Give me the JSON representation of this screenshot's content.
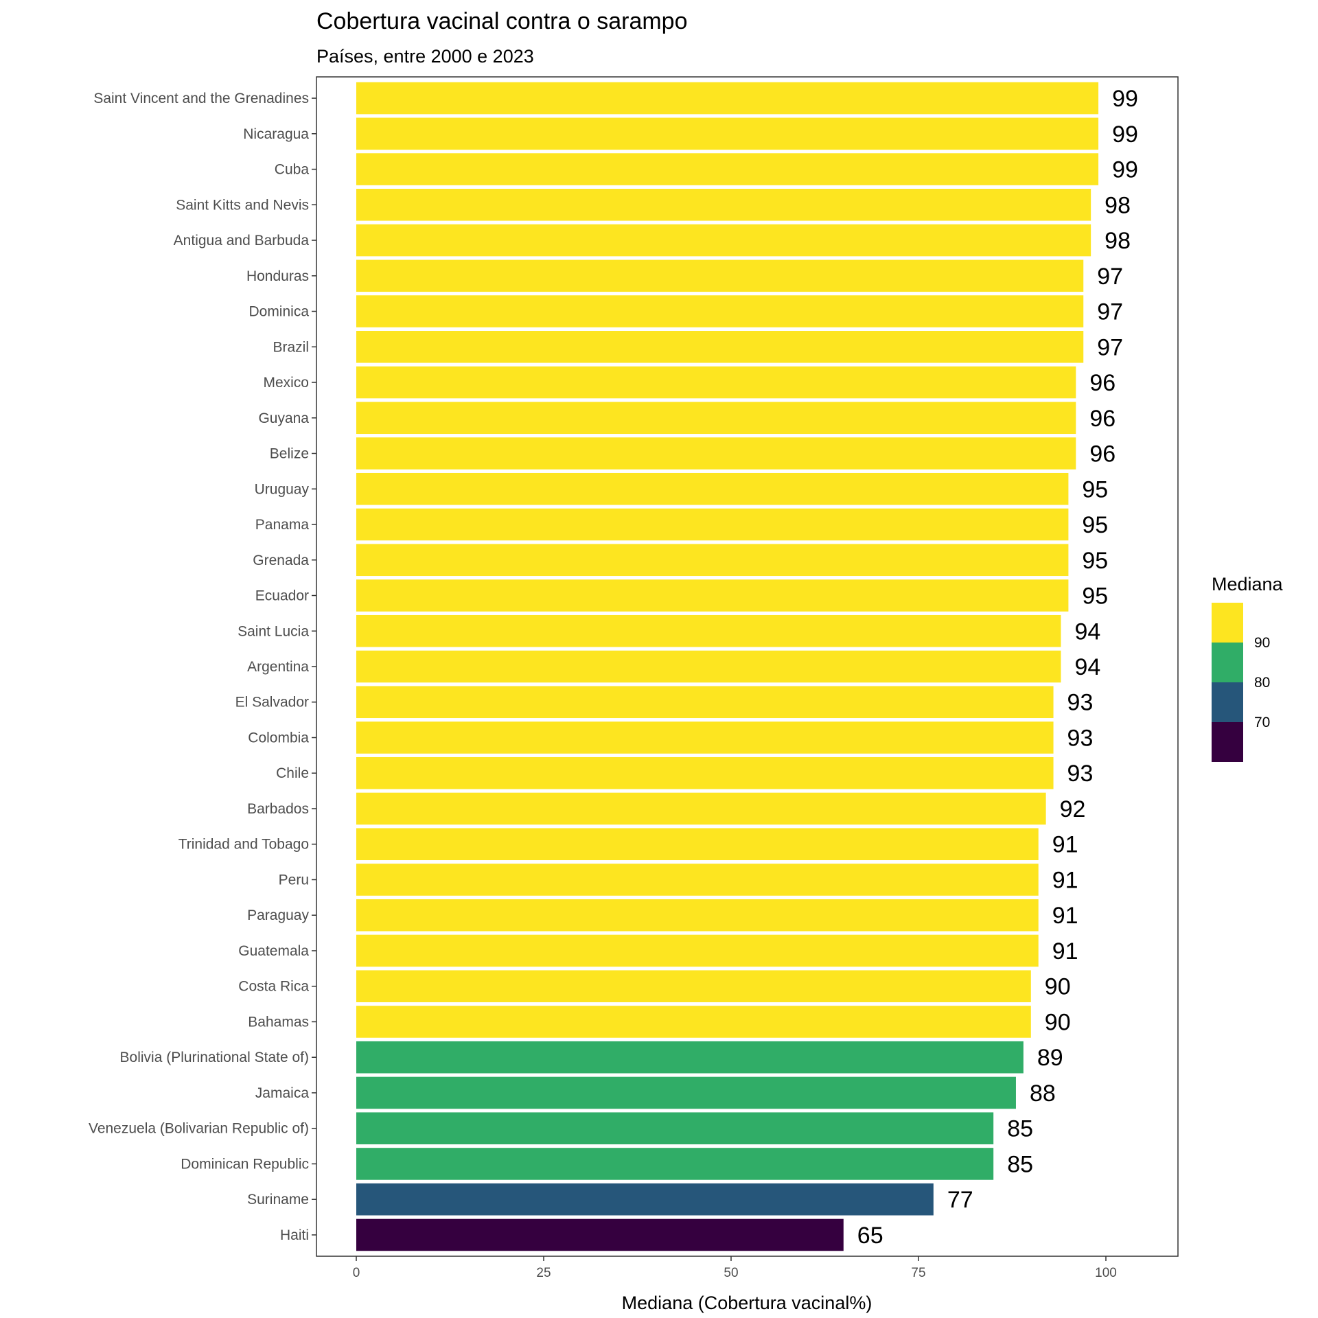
{
  "chart_data": {
    "type": "bar",
    "orientation": "horizontal",
    "title": "Cobertura vacinal contra o sarampo",
    "subtitle": "Países, entre 2000 e 2023",
    "xlabel": "Mediana (Cobertura vacinal%)",
    "ylabel": "",
    "xlim": [
      0,
      110
    ],
    "xticks": [
      0,
      25,
      50,
      75,
      100
    ],
    "grid": false,
    "categories": [
      "Saint Vincent and the Grenadines",
      "Nicaragua",
      "Cuba",
      "Saint Kitts and Nevis",
      "Antigua and Barbuda",
      "Honduras",
      "Dominica",
      "Brazil",
      "Mexico",
      "Guyana",
      "Belize",
      "Uruguay",
      "Panama",
      "Grenada",
      "Ecuador",
      "Saint Lucia",
      "Argentina",
      "El Salvador",
      "Colombia",
      "Chile",
      "Barbados",
      "Trinidad and Tobago",
      "Peru",
      "Paraguay",
      "Guatemala",
      "Costa Rica",
      "Bahamas",
      "Bolivia (Plurinational State of)",
      "Jamaica",
      "Venezuela (Bolivarian Republic of)",
      "Dominican Republic",
      "Suriname",
      "Haiti"
    ],
    "values": [
      99,
      99,
      99,
      98,
      98,
      97,
      97,
      97,
      96,
      96,
      96,
      95,
      95,
      95,
      95,
      94,
      94,
      93,
      93,
      93,
      92,
      91,
      91,
      91,
      91,
      90,
      90,
      89,
      88,
      85,
      85,
      77,
      65
    ],
    "legend": {
      "title": "Mediana",
      "position": "right",
      "type": "binned",
      "breaks": [
        70,
        80,
        90
      ],
      "bins": [
        {
          "range": "<70",
          "color": "#35003f"
        },
        {
          "range": "70-80",
          "color": "#26567a"
        },
        {
          "range": "80-90",
          "color": "#30ad67"
        },
        {
          "range": ">=90",
          "color": "#fde520"
        }
      ]
    }
  }
}
